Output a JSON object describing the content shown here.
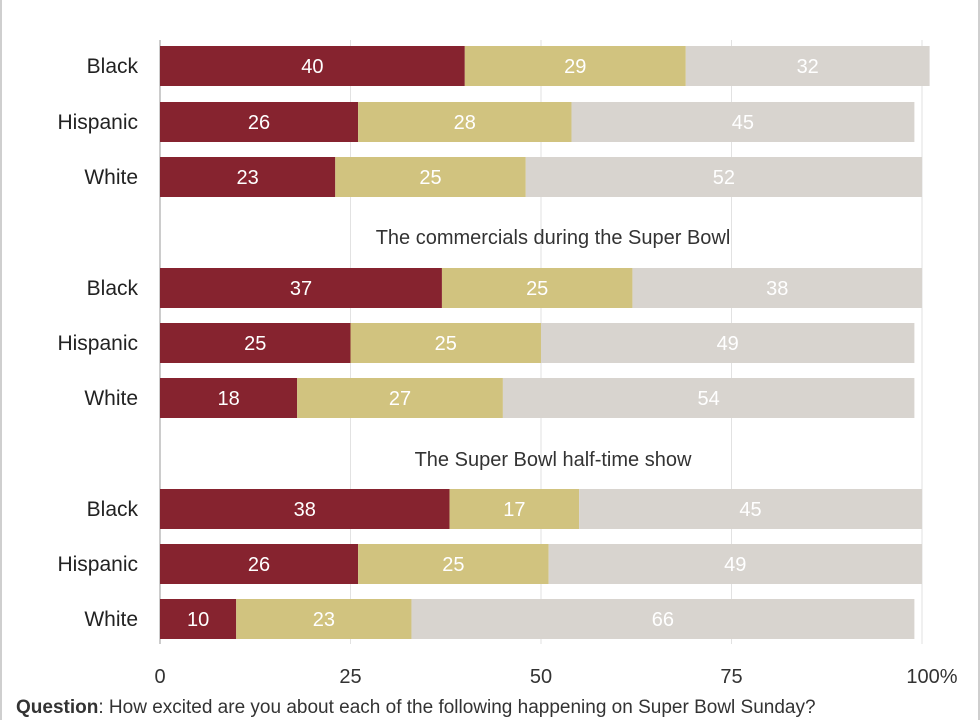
{
  "footnote": {
    "label": "Question",
    "text": ": How excited are you about each of the following happening on Super Bowl Sunday?"
  },
  "colors": {
    "very": "#86232f",
    "somewhat": "#d1c37f",
    "not": "#d8d4cf",
    "label_on_dark": "#ffffff",
    "gridline": "#e2e2e2",
    "axis": "#999999"
  },
  "chart_data": {
    "type": "bar",
    "orientation": "horizontal",
    "stacked": true,
    "title": "",
    "xlabel": "",
    "ylabel": "",
    "xlim": [
      0,
      100
    ],
    "x_ticks": [
      "0",
      "25",
      "50",
      "75",
      "100%"
    ],
    "grid": true,
    "groups": [
      {
        "title": "",
        "categories": [
          "Black",
          "Hispanic",
          "White"
        ],
        "series": [
          {
            "values": [
              40,
              26,
              23
            ]
          },
          {
            "values": [
              29,
              28,
              25
            ]
          },
          {
            "values": [
              32,
              45,
              52
            ]
          }
        ]
      },
      {
        "title": "The commercials during the Super Bowl",
        "categories": [
          "Black",
          "Hispanic",
          "White"
        ],
        "series": [
          {
            "values": [
              37,
              25,
              18
            ]
          },
          {
            "values": [
              25,
              25,
              27
            ]
          },
          {
            "values": [
              38,
              49,
              54
            ]
          }
        ]
      },
      {
        "title": "The Super Bowl half-time show",
        "categories": [
          "Black",
          "Hispanic",
          "White"
        ],
        "series": [
          {
            "values": [
              38,
              26,
              10
            ]
          },
          {
            "values": [
              17,
              25,
              23
            ]
          },
          {
            "values": [
              45,
              49,
              66
            ]
          }
        ]
      }
    ]
  }
}
